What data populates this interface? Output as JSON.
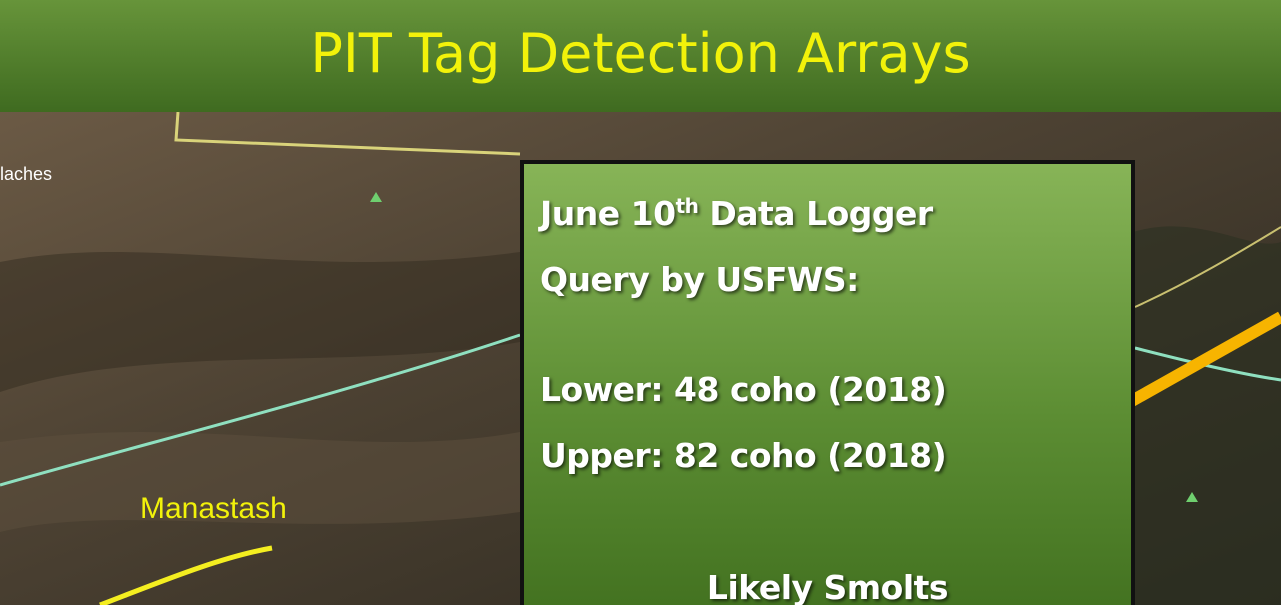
{
  "header": {
    "title": "PIT Tag Detection Arrays"
  },
  "map": {
    "labels": [
      "laches",
      "Manastash"
    ]
  },
  "callout": {
    "date": "June 10",
    "suffix": "th",
    "rest": "Data Logger",
    "line2": "Query by USFWS:",
    "lines": [
      "Lower: 48 coho (2018)",
      "Upper: 82 coho (2018)"
    ],
    "footer": "Likely Smolts"
  }
}
